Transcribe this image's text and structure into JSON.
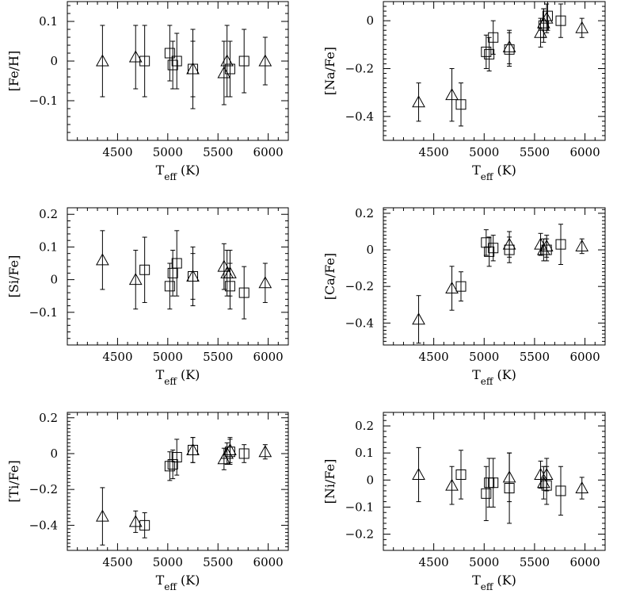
{
  "chart_data": [
    {
      "type": "scatter",
      "ylabel": "[Fe/H]",
      "xlabel_main": "T",
      "xlabel_sub": "eff",
      "xlabel_unit": "(K)",
      "xlim": [
        4000,
        6200
      ],
      "ylim": [
        -0.2,
        0.15
      ],
      "yticks": [
        0.1,
        0,
        -0.1
      ],
      "ytick_labels": [
        "0.1",
        "0",
        "−0.1"
      ],
      "xticks": [
        4500,
        5000,
        5500,
        6000
      ],
      "xtick_labels": [
        "4500",
        "5000",
        "5500",
        "6000"
      ],
      "series": [
        {
          "marker": "triangle",
          "points": [
            {
              "x": 4350,
              "y": 0.0,
              "err": 0.09
            },
            {
              "x": 4680,
              "y": 0.01,
              "err": 0.08
            },
            {
              "x": 5250,
              "y": -0.02,
              "err": 0.1
            },
            {
              "x": 5560,
              "y": -0.03,
              "err": 0.08
            },
            {
              "x": 5590,
              "y": 0.0,
              "err": 0.09
            },
            {
              "x": 5970,
              "y": 0.0,
              "err": 0.06
            }
          ]
        },
        {
          "marker": "square",
          "points": [
            {
              "x": 4770,
              "y": 0.0,
              "err": 0.09
            },
            {
              "x": 5020,
              "y": 0.02,
              "err": 0.07
            },
            {
              "x": 5050,
              "y": -0.01,
              "err": 0.06
            },
            {
              "x": 5090,
              "y": 0.0,
              "err": 0.07
            },
            {
              "x": 5250,
              "y": -0.02,
              "err": 0.07
            },
            {
              "x": 5620,
              "y": -0.02,
              "err": 0.07
            },
            {
              "x": 5760,
              "y": 0.0,
              "err": 0.08
            }
          ]
        }
      ]
    },
    {
      "type": "scatter",
      "ylabel": "[Na/Fe]",
      "xlabel_main": "T",
      "xlabel_sub": "eff",
      "xlabel_unit": "(K)",
      "xlim": [
        4000,
        6200
      ],
      "ylim": [
        -0.5,
        0.08
      ],
      "yticks": [
        0,
        -0.2,
        -0.4
      ],
      "ytick_labels": [
        "0",
        "−0.2",
        "−0.4"
      ],
      "xticks": [
        4500,
        5000,
        5500,
        6000
      ],
      "xtick_labels": [
        "4500",
        "5000",
        "5500",
        "6000"
      ],
      "series": [
        {
          "marker": "triangle",
          "points": [
            {
              "x": 4350,
              "y": -0.34,
              "err": 0.08
            },
            {
              "x": 4680,
              "y": -0.31,
              "err": 0.11
            },
            {
              "x": 5250,
              "y": -0.11,
              "err": 0.07
            },
            {
              "x": 5560,
              "y": -0.05,
              "err": 0.06
            },
            {
              "x": 5590,
              "y": -0.01,
              "err": 0.06
            },
            {
              "x": 5620,
              "y": 0.01,
              "err": 0.06
            },
            {
              "x": 5970,
              "y": -0.03,
              "err": 0.04
            }
          ]
        },
        {
          "marker": "square",
          "points": [
            {
              "x": 4770,
              "y": -0.35,
              "err": 0.09
            },
            {
              "x": 5020,
              "y": -0.13,
              "err": 0.07
            },
            {
              "x": 5050,
              "y": -0.14,
              "err": 0.07
            },
            {
              "x": 5090,
              "y": -0.07,
              "err": 0.07
            },
            {
              "x": 5250,
              "y": -0.12,
              "err": 0.07
            },
            {
              "x": 5590,
              "y": -0.02,
              "err": 0.07
            },
            {
              "x": 5630,
              "y": 0.02,
              "err": 0.06
            },
            {
              "x": 5760,
              "y": 0.0,
              "err": 0.07
            }
          ]
        }
      ]
    },
    {
      "type": "scatter",
      "ylabel": "[Si/Fe]",
      "xlabel_main": "T",
      "xlabel_sub": "eff",
      "xlabel_unit": "(K)",
      "xlim": [
        4000,
        6200
      ],
      "ylim": [
        -0.2,
        0.22
      ],
      "yticks": [
        0.2,
        0.1,
        0,
        -0.1
      ],
      "ytick_labels": [
        "0.2",
        "0.1",
        "0",
        "−0.1"
      ],
      "xticks": [
        4500,
        5000,
        5500,
        6000
      ],
      "xtick_labels": [
        "4500",
        "5000",
        "5500",
        "6000"
      ],
      "series": [
        {
          "marker": "triangle",
          "points": [
            {
              "x": 4350,
              "y": 0.06,
              "err": 0.09
            },
            {
              "x": 4680,
              "y": 0.0,
              "err": 0.09
            },
            {
              "x": 5250,
              "y": 0.01,
              "err": 0.09
            },
            {
              "x": 5560,
              "y": 0.04,
              "err": 0.07
            },
            {
              "x": 5590,
              "y": 0.02,
              "err": 0.07
            },
            {
              "x": 5620,
              "y": 0.02,
              "err": 0.07
            },
            {
              "x": 5970,
              "y": -0.01,
              "err": 0.06
            }
          ]
        },
        {
          "marker": "square",
          "points": [
            {
              "x": 4770,
              "y": 0.03,
              "err": 0.1
            },
            {
              "x": 5020,
              "y": -0.02,
              "err": 0.07
            },
            {
              "x": 5050,
              "y": 0.02,
              "err": 0.07
            },
            {
              "x": 5090,
              "y": 0.05,
              "err": 0.1
            },
            {
              "x": 5250,
              "y": 0.01,
              "err": 0.07
            },
            {
              "x": 5620,
              "y": -0.02,
              "err": 0.07
            },
            {
              "x": 5760,
              "y": -0.04,
              "err": 0.08
            }
          ]
        }
      ]
    },
    {
      "type": "scatter",
      "ylabel": "[Ca/Fe]",
      "xlabel_main": "T",
      "xlabel_sub": "eff",
      "xlabel_unit": "(K)",
      "xlim": [
        4000,
        6200
      ],
      "ylim": [
        -0.52,
        0.23
      ],
      "yticks": [
        0.2,
        0,
        -0.2,
        -0.4
      ],
      "ytick_labels": [
        "0.2",
        "0",
        "−0.2",
        "−0.4"
      ],
      "xticks": [
        4500,
        5000,
        5500,
        6000
      ],
      "xtick_labels": [
        "4500",
        "5000",
        "5500",
        "6000"
      ],
      "series": [
        {
          "marker": "triangle",
          "points": [
            {
              "x": 4350,
              "y": -0.38,
              "err": 0.13
            },
            {
              "x": 4680,
              "y": -0.21,
              "err": 0.12
            },
            {
              "x": 5250,
              "y": 0.03,
              "err": 0.07
            },
            {
              "x": 5560,
              "y": 0.03,
              "err": 0.06
            },
            {
              "x": 5590,
              "y": 0.0,
              "err": 0.06
            },
            {
              "x": 5620,
              "y": 0.02,
              "err": 0.06
            },
            {
              "x": 5970,
              "y": 0.02,
              "err": 0.04
            }
          ]
        },
        {
          "marker": "square",
          "points": [
            {
              "x": 4770,
              "y": -0.2,
              "err": 0.08
            },
            {
              "x": 5020,
              "y": 0.04,
              "err": 0.07
            },
            {
              "x": 5050,
              "y": -0.01,
              "err": 0.08
            },
            {
              "x": 5090,
              "y": 0.01,
              "err": 0.07
            },
            {
              "x": 5250,
              "y": 0.0,
              "err": 0.07
            },
            {
              "x": 5620,
              "y": 0.0,
              "err": 0.06
            },
            {
              "x": 5760,
              "y": 0.03,
              "err": 0.11
            }
          ]
        }
      ]
    },
    {
      "type": "scatter",
      "ylabel": "[Ti/Fe]",
      "xlabel_main": "T",
      "xlabel_sub": "eff",
      "xlabel_unit": "(K)",
      "xlim": [
        4000,
        6200
      ],
      "ylim": [
        -0.54,
        0.23
      ],
      "yticks": [
        0.2,
        0,
        -0.2,
        -0.4
      ],
      "ytick_labels": [
        "0.2",
        "0",
        "−0.2",
        "−0.4"
      ],
      "xticks": [
        4500,
        5000,
        5500,
        6000
      ],
      "xtick_labels": [
        "4500",
        "5000",
        "5500",
        "6000"
      ],
      "series": [
        {
          "marker": "triangle",
          "points": [
            {
              "x": 4350,
              "y": -0.35,
              "err": 0.16
            },
            {
              "x": 4680,
              "y": -0.38,
              "err": 0.06
            },
            {
              "x": 5250,
              "y": 0.02,
              "err": 0.07
            },
            {
              "x": 5560,
              "y": -0.03,
              "err": 0.06
            },
            {
              "x": 5590,
              "y": 0.0,
              "err": 0.06
            },
            {
              "x": 5620,
              "y": 0.02,
              "err": 0.07
            },
            {
              "x": 5970,
              "y": 0.01,
              "err": 0.04
            }
          ]
        },
        {
          "marker": "square",
          "points": [
            {
              "x": 4770,
              "y": -0.4,
              "err": 0.07
            },
            {
              "x": 5020,
              "y": -0.07,
              "err": 0.08
            },
            {
              "x": 5050,
              "y": -0.06,
              "err": 0.08
            },
            {
              "x": 5090,
              "y": -0.02,
              "err": 0.1
            },
            {
              "x": 5250,
              "y": 0.02,
              "err": 0.07
            },
            {
              "x": 5620,
              "y": 0.01,
              "err": 0.07
            },
            {
              "x": 5760,
              "y": 0.0,
              "err": 0.05
            }
          ]
        }
      ]
    },
    {
      "type": "scatter",
      "ylabel": "[Ni/Fe]",
      "xlabel_main": "T",
      "xlabel_sub": "eff",
      "xlabel_unit": "(K)",
      "xlim": [
        4000,
        6200
      ],
      "ylim": [
        -0.26,
        0.25
      ],
      "yticks": [
        0.2,
        0.1,
        0,
        -0.1,
        -0.2
      ],
      "ytick_labels": [
        "0.2",
        "0.1",
        "0",
        "−0.1",
        "−0.2"
      ],
      "xticks": [
        4500,
        5000,
        5500,
        6000
      ],
      "xtick_labels": [
        "4500",
        "5000",
        "5500",
        "6000"
      ],
      "series": [
        {
          "marker": "triangle",
          "points": [
            {
              "x": 4350,
              "y": 0.02,
              "err": 0.1
            },
            {
              "x": 4680,
              "y": -0.02,
              "err": 0.07
            },
            {
              "x": 5250,
              "y": 0.01,
              "err": 0.09
            },
            {
              "x": 5560,
              "y": 0.02,
              "err": 0.05
            },
            {
              "x": 5590,
              "y": -0.01,
              "err": 0.06
            },
            {
              "x": 5620,
              "y": 0.02,
              "err": 0.06
            },
            {
              "x": 5970,
              "y": -0.03,
              "err": 0.04
            }
          ]
        },
        {
          "marker": "square",
          "points": [
            {
              "x": 4770,
              "y": 0.02,
              "err": 0.09
            },
            {
              "x": 5020,
              "y": -0.05,
              "err": 0.1
            },
            {
              "x": 5050,
              "y": -0.01,
              "err": 0.09
            },
            {
              "x": 5090,
              "y": -0.01,
              "err": 0.09
            },
            {
              "x": 5250,
              "y": -0.03,
              "err": 0.13
            },
            {
              "x": 5620,
              "y": -0.02,
              "err": 0.07
            },
            {
              "x": 5760,
              "y": -0.04,
              "err": 0.09
            }
          ]
        }
      ]
    }
  ]
}
